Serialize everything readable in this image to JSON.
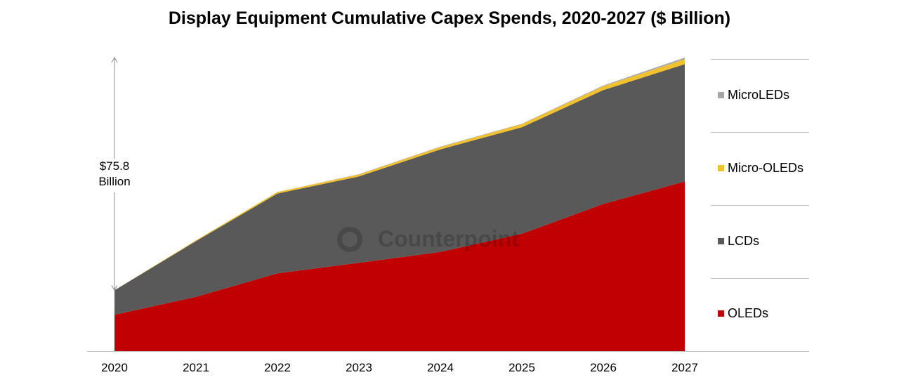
{
  "chart_data": {
    "type": "area",
    "title": "Display Equipment Cumulative Capex Spends, 2020-2027 ($ Billion)",
    "x": [
      "2020",
      "2021",
      "2022",
      "2023",
      "2024",
      "2025",
      "2026",
      "2027"
    ],
    "stacked": true,
    "ylim": [
      0,
      75.8
    ],
    "series": [
      {
        "name": "OLEDs",
        "color": "#c00000",
        "values": [
          9.4,
          14.0,
          20.1,
          22.8,
          25.6,
          30.3,
          38.0,
          43.8
        ]
      },
      {
        "name": "LCDs",
        "color": "#595959",
        "values": [
          6.3,
          14.4,
          20.6,
          22.3,
          26.5,
          27.5,
          29.4,
          30.3
        ]
      },
      {
        "name": "Micro-OLEDs",
        "color": "#f2c12e",
        "values": [
          0.0,
          0.2,
          0.4,
          0.5,
          0.6,
          0.8,
          1.0,
          1.3
        ]
      },
      {
        "name": "MicroLEDs",
        "color": "#a6a6a6",
        "values": [
          0.0,
          0.0,
          0.0,
          0.1,
          0.1,
          0.1,
          0.2,
          0.4
        ]
      }
    ],
    "legend_order": [
      "MicroLEDs",
      "Micro-OLEDs",
      "LCDs",
      "OLEDs"
    ],
    "legend_position": "right",
    "annotation": {
      "line1": "$75.8",
      "line2": "Billion"
    },
    "grid": false
  },
  "watermark": "Counterpoint"
}
